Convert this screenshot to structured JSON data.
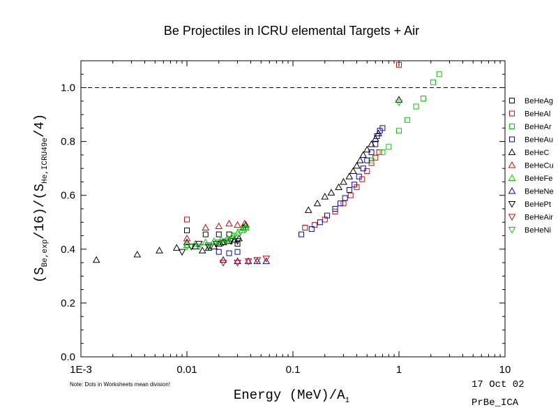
{
  "chart_data": {
    "type": "scatter",
    "title": "Be Projectiles in ICRU elemental Targets + Air",
    "xlabel": "Energy (MeV)/A",
    "xlabel_sub": "1",
    "ylabel": {
      "p1": "(S",
      "sub1": "Be,exp",
      "p2": "/16)/(S",
      "sub2": "He,ICRU49e",
      "p3": "/4)"
    },
    "x_scale": "log",
    "xlim": [
      0.001,
      10
    ],
    "ylim": [
      0.0,
      1.1
    ],
    "x_ticks": [
      {
        "value": 0.001,
        "label": "1E-3"
      },
      {
        "value": 0.01,
        "label": "0.01"
      },
      {
        "value": 0.1,
        "label": "0.1"
      },
      {
        "value": 1,
        "label": "1"
      },
      {
        "value": 10,
        "label": "10"
      }
    ],
    "y_ticks": [
      {
        "value": 0.0,
        "label": "0.0"
      },
      {
        "value": 0.2,
        "label": "0.2"
      },
      {
        "value": 0.4,
        "label": "0.4"
      },
      {
        "value": 0.6,
        "label": "0.6"
      },
      {
        "value": 0.8,
        "label": "0.8"
      },
      {
        "value": 1.0,
        "label": "1.0"
      }
    ],
    "reference_line": 1.0,
    "legend_position": "right",
    "series": [
      {
        "name": "BeHeAg",
        "marker": "square",
        "color": "#000000",
        "points": [
          [
            0.01,
            0.47
          ],
          [
            0.012,
            0.41
          ],
          [
            0.015,
            0.455
          ],
          [
            0.02,
            0.455
          ],
          [
            0.025,
            0.455
          ],
          [
            0.03,
            0.42
          ]
        ]
      },
      {
        "name": "BeHeAl",
        "marker": "square",
        "color": "#dd0000",
        "points": [
          [
            0.01,
            0.51
          ],
          [
            0.13,
            0.48
          ],
          [
            0.16,
            0.49
          ],
          [
            0.2,
            0.51
          ],
          [
            0.25,
            0.54
          ],
          [
            0.3,
            0.57
          ],
          [
            0.35,
            0.6
          ],
          [
            0.4,
            0.63
          ],
          [
            0.45,
            0.66
          ],
          [
            0.5,
            0.69
          ],
          [
            0.55,
            0.72
          ],
          [
            0.6,
            0.74
          ],
          [
            0.65,
            0.76
          ],
          [
            1.0,
            1.085
          ]
        ]
      },
      {
        "name": "BeHeAr",
        "marker": "square",
        "color": "#00cc00",
        "points": [
          [
            0.55,
            0.73
          ],
          [
            0.7,
            0.76
          ],
          [
            0.8,
            0.78
          ],
          [
            1.0,
            0.84
          ],
          [
            1.2,
            0.88
          ],
          [
            1.45,
            0.93
          ],
          [
            1.7,
            0.96
          ],
          [
            2.1,
            1.02
          ],
          [
            2.4,
            1.05
          ]
        ]
      },
      {
        "name": "BeHeAu",
        "marker": "square",
        "color": "#0000cc",
        "points": [
          [
            0.02,
            0.39
          ],
          [
            0.025,
            0.385
          ],
          [
            0.03,
            0.39
          ],
          [
            0.12,
            0.455
          ],
          [
            0.15,
            0.475
          ],
          [
            0.18,
            0.5
          ],
          [
            0.21,
            0.525
          ],
          [
            0.25,
            0.55
          ],
          [
            0.28,
            0.57
          ],
          [
            0.31,
            0.59
          ],
          [
            0.34,
            0.62
          ],
          [
            0.38,
            0.64
          ],
          [
            0.42,
            0.67
          ],
          [
            0.46,
            0.7
          ],
          [
            0.5,
            0.73
          ],
          [
            0.55,
            0.76
          ],
          [
            0.6,
            0.79
          ],
          [
            0.62,
            0.82
          ],
          [
            0.66,
            0.84
          ],
          [
            0.7,
            0.85
          ]
        ]
      },
      {
        "name": "BeHeC",
        "marker": "triangle-up",
        "color": "#000000",
        "points": [
          [
            0.0014,
            0.36
          ],
          [
            0.0034,
            0.38
          ],
          [
            0.0055,
            0.395
          ],
          [
            0.008,
            0.405
          ],
          [
            0.01,
            0.425
          ],
          [
            0.012,
            0.41
          ],
          [
            0.014,
            0.395
          ],
          [
            0.016,
            0.405
          ],
          [
            0.018,
            0.41
          ],
          [
            0.02,
            0.42
          ],
          [
            0.022,
            0.425
          ],
          [
            0.025,
            0.43
          ],
          [
            0.028,
            0.435
          ],
          [
            0.031,
            0.44
          ],
          [
            0.034,
            0.48
          ],
          [
            0.036,
            0.49
          ],
          [
            0.14,
            0.545
          ],
          [
            0.17,
            0.57
          ],
          [
            0.2,
            0.595
          ],
          [
            0.23,
            0.61
          ],
          [
            0.27,
            0.63
          ],
          [
            0.3,
            0.65
          ],
          [
            0.34,
            0.67
          ],
          [
            0.37,
            0.69
          ],
          [
            0.4,
            0.71
          ],
          [
            0.43,
            0.73
          ],
          [
            0.46,
            0.75
          ],
          [
            0.5,
            0.77
          ],
          [
            0.55,
            0.79
          ],
          [
            0.6,
            0.81
          ],
          [
            0.64,
            0.83
          ],
          [
            1.0,
            0.955
          ]
        ]
      },
      {
        "name": "BeHeCu",
        "marker": "triangle-up",
        "color": "#dd0000",
        "points": [
          [
            0.01,
            0.44
          ],
          [
            0.015,
            0.48
          ],
          [
            0.02,
            0.485
          ],
          [
            0.025,
            0.495
          ],
          [
            0.03,
            0.49
          ],
          [
            0.035,
            0.495
          ]
        ]
      },
      {
        "name": "BeHeFe",
        "marker": "triangle-up",
        "color": "#00cc00",
        "points": [
          [
            0.01,
            0.415
          ],
          [
            0.012,
            0.42
          ],
          [
            0.015,
            0.425
          ],
          [
            0.018,
            0.43
          ],
          [
            0.021,
            0.435
          ],
          [
            0.024,
            0.44
          ],
          [
            0.027,
            0.45
          ],
          [
            0.03,
            0.46
          ],
          [
            0.033,
            0.47
          ],
          [
            0.036,
            0.48
          ]
        ]
      },
      {
        "name": "BeHeNe",
        "marker": "triangle-up",
        "color": "#0000cc",
        "points": [
          [
            0.022,
            0.36
          ],
          [
            0.03,
            0.355
          ],
          [
            0.038,
            0.355
          ],
          [
            0.046,
            0.355
          ],
          [
            0.056,
            0.355
          ]
        ]
      },
      {
        "name": "BeHePt",
        "marker": "triangle-down",
        "color": "#000000",
        "points": [
          [
            0.009,
            0.39
          ],
          [
            0.011,
            0.41
          ],
          [
            0.013,
            0.42
          ],
          [
            0.016,
            0.41
          ],
          [
            0.019,
            0.42
          ],
          [
            0.022,
            0.425
          ],
          [
            0.026,
            0.43
          ],
          [
            0.03,
            0.43
          ]
        ]
      },
      {
        "name": "BeHeAir",
        "marker": "triangle-down",
        "color": "#dd0000",
        "points": [
          [
            0.022,
            0.35
          ],
          [
            0.03,
            0.35
          ],
          [
            0.038,
            0.355
          ],
          [
            0.046,
            0.36
          ],
          [
            0.056,
            0.365
          ]
        ]
      },
      {
        "name": "BeHeNi",
        "marker": "triangle-down",
        "color": "#00cc00",
        "points": [
          [
            0.01,
            0.41
          ],
          [
            0.013,
            0.41
          ],
          [
            0.016,
            0.415
          ],
          [
            0.02,
            0.425
          ],
          [
            0.024,
            0.43
          ],
          [
            0.028,
            0.45
          ],
          [
            0.032,
            0.465
          ],
          [
            0.036,
            0.475
          ],
          [
            1.0,
            0.945
          ]
        ]
      }
    ],
    "annotations": {
      "note": "Note: Dots in Worksheets mean division!",
      "date": "17 Oct 02",
      "file": "PrBe_ICA"
    }
  }
}
